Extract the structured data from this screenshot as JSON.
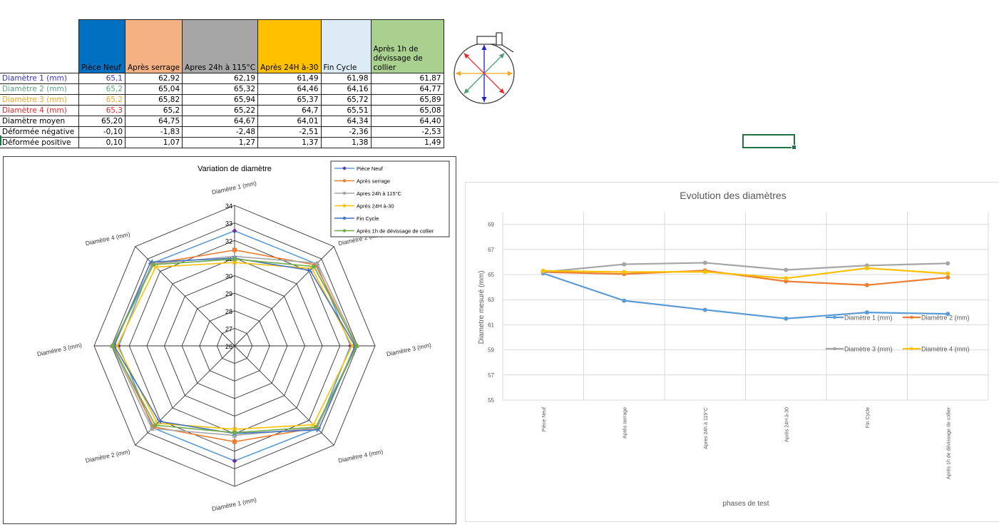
{
  "table": {
    "columns": [
      {
        "label": "Pièce Neuf",
        "bg": "#0070c0"
      },
      {
        "label": "Après serrage",
        "bg": "#f4b183"
      },
      {
        "label": "Apres 24h à 115°C",
        "bg": "#a6a6a6"
      },
      {
        "label": "Après 24H à-30",
        "bg": "#ffc000"
      },
      {
        "label": "Fin Cycle",
        "bg": "#ddebf7"
      },
      {
        "label": "Après 1h  de dévissage  de collier",
        "bg": "#a9d08e"
      }
    ],
    "rows": [
      {
        "label": "Diamètre 1 (mm)",
        "color": "#3333cc",
        "values": [
          "65,1",
          "62,92",
          "62,19",
          "61,49",
          "61,98",
          "61,87"
        ]
      },
      {
        "label": "Diamètre 2 (mm)",
        "color": "#5fa582",
        "values": [
          "65,2",
          "65,04",
          "65,32",
          "64,46",
          "64,16",
          "64,77"
        ]
      },
      {
        "label": "Diamètre 3 (mm)",
        "color": "#f5a623",
        "values": [
          "65,2",
          "65,82",
          "65,94",
          "65,37",
          "65,72",
          "65,89"
        ]
      },
      {
        "label": "Diamètre 4 (mm)",
        "color": "#e8272a",
        "values": [
          "65,3",
          "65,2",
          "65,22",
          "64,7",
          "65,51",
          "65,08"
        ]
      },
      {
        "label": "Diamètre moyen",
        "color": "#000000",
        "values": [
          "65,20",
          "64,75",
          "64,67",
          "64,01",
          "64,34",
          "64,40"
        ]
      },
      {
        "label": "Déformée négative",
        "color": "#000000",
        "values": [
          "-0,10",
          "-1,83",
          "-2,48",
          "-2,51",
          "-2,36",
          "-2,53"
        ]
      },
      {
        "label": "Déformée positive",
        "color": "#000000",
        "values": [
          "0,10",
          "1,07",
          "1,27",
          "1,37",
          "1,38",
          "1,49"
        ]
      }
    ]
  },
  "diagram": {
    "arrow_colors": {
      "d1": "#1f1fd0",
      "d2": "#4a9a72",
      "d3": "#f5a623",
      "d4": "#e8272a"
    }
  },
  "chart_data": [
    {
      "type": "radar",
      "title": "Variation de diamètre",
      "axes": [
        "Diamètre 1 (mm)",
        "Diamètre 2 (mm)",
        "Diamètre 3 (mm)",
        "Diamètre 4 (mm)",
        "Diamètre 1 (mm)",
        "Diamètre 2 (mm)",
        "Diamètre 3 (mm)",
        "Diamètre 4 (mm)"
      ],
      "range": [
        26,
        34
      ],
      "ticks": [
        "26",
        "27",
        "28",
        "29",
        "30",
        "31",
        "32",
        "33",
        "34"
      ],
      "legend_position": "top-right",
      "series": [
        {
          "name": "Pièce Neuf",
          "color": "#5b9bd5",
          "marker": "diamond",
          "marker_color": "#7030a0",
          "values": [
            32.55,
            32.6,
            32.6,
            32.65,
            32.55,
            32.6,
            32.6,
            32.65
          ]
        },
        {
          "name": "Après serrage",
          "color": "#ed7d31",
          "marker": "square",
          "marker_color": "#ed7d31",
          "values": [
            31.46,
            32.52,
            32.91,
            32.6,
            31.46,
            32.52,
            32.91,
            32.6
          ]
        },
        {
          "name": "Apres 24h à 115°C",
          "color": "#a5a5a5",
          "marker": "triangle",
          "marker_color": "#a5a5a5",
          "values": [
            31.1,
            32.66,
            32.97,
            32.61,
            31.1,
            32.66,
            32.97,
            32.61
          ]
        },
        {
          "name": "Après 24H à-30",
          "color": "#ffc000",
          "marker": "x",
          "marker_color": "#ffc000",
          "values": [
            30.75,
            32.23,
            32.69,
            32.35,
            30.75,
            32.23,
            32.69,
            32.35
          ]
        },
        {
          "name": "Fin Cycle",
          "color": "#4472c4",
          "marker": "x",
          "marker_color": "#4472c4",
          "values": [
            30.99,
            32.08,
            32.86,
            32.76,
            30.99,
            32.08,
            32.86,
            32.76
          ]
        },
        {
          "name": "Après 1h  de dévissage  de collier",
          "color": "#70ad47",
          "marker": "circle",
          "marker_color": "#70ad47",
          "values": [
            30.94,
            32.39,
            32.95,
            32.54,
            30.94,
            32.39,
            32.95,
            32.54
          ]
        }
      ]
    },
    {
      "type": "line",
      "title": "Evolution des diamètres",
      "xlabel": "phases de test",
      "ylabel": "Diametre mesuré (mm)",
      "ylim": [
        55,
        70
      ],
      "yticks": [
        55,
        57,
        59,
        61,
        63,
        65,
        67,
        69
      ],
      "grid": true,
      "legend_position": "right-inside",
      "categories": [
        "Pièce Neuf",
        "Après serrage",
        "Apres 24h à 115°C",
        "Après 24H à-30",
        "Fin Cycle",
        "Après 1h  de dévissage  de collier"
      ],
      "series": [
        {
          "name": "Diamètre 1 (mm)",
          "color": "#5b9bd5",
          "values": [
            65.1,
            62.92,
            62.19,
            61.49,
            61.98,
            61.87
          ]
        },
        {
          "name": "Diamètre 2 (mm)",
          "color": "#ed7d31",
          "values": [
            65.2,
            65.04,
            65.32,
            64.46,
            64.16,
            64.77
          ]
        },
        {
          "name": "Diamètre 3 (mm)",
          "color": "#a5a5a5",
          "values": [
            65.2,
            65.82,
            65.94,
            65.37,
            65.72,
            65.89
          ]
        },
        {
          "name": "Diamètre 4 (mm)",
          "color": "#ffc000",
          "values": [
            65.3,
            65.2,
            65.22,
            64.7,
            65.51,
            65.08
          ]
        }
      ]
    }
  ]
}
